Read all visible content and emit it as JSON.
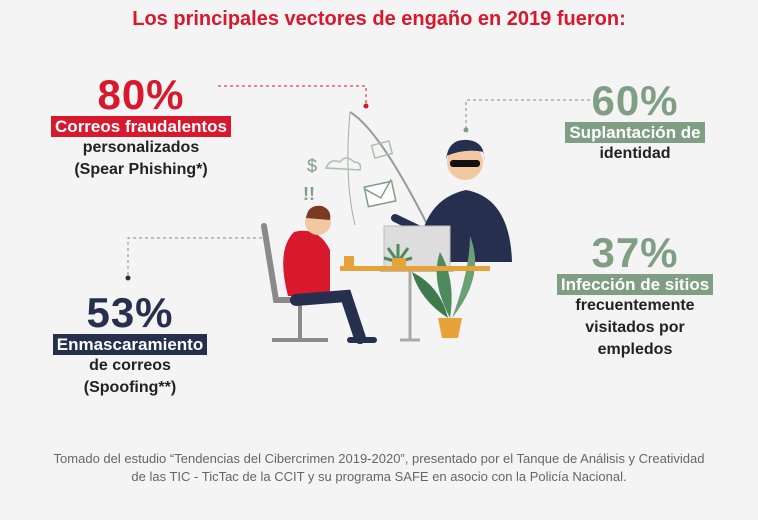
{
  "title": "Los principales vectores de engaño en 2019 fueron:",
  "stats": [
    {
      "percent": "80%",
      "highlight": "Correos fraudalentos",
      "line1": "personalizados",
      "line2": "(Spear Phishing*)",
      "color": "#d8182d"
    },
    {
      "percent": "60%",
      "highlight": "Suplantación de",
      "line1": "identidad",
      "line2": "",
      "color": "#7f9e84"
    },
    {
      "percent": "53%",
      "highlight": "Enmascaramiento",
      "line1": "de correos",
      "line2": "(Spoofing**)",
      "color": "#26304e"
    },
    {
      "percent": "37%",
      "highlight": "Infección de sitios",
      "line1": "frecuentemente",
      "line2": "visitados por",
      "line3": "empledos",
      "color": "#7f9e84"
    }
  ],
  "footer": "Tomado del estudio “Tendencias del Cibercrimen 2019-2020”, presentado por el Tanque de Análisis y Creatividad de las TIC - TicTac de la CCIT y su programa SAFE en asocio con la Policía Nacional.",
  "illustration": {
    "icons": [
      "dollar-icon",
      "cloud-icon",
      "envelope-icon",
      "mail-icon",
      "exclamation-icon"
    ]
  }
}
